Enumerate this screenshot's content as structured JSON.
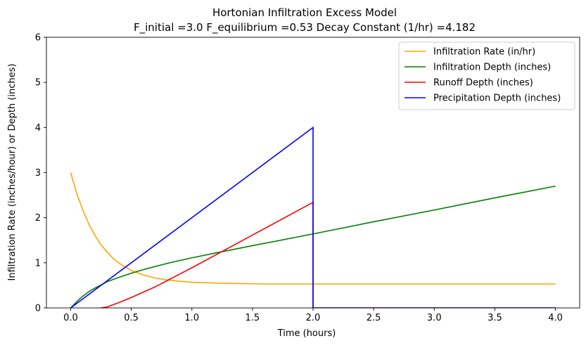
{
  "chart_data": {
    "type": "line",
    "title": "Hortonian Infiltration Excess Model",
    "subtitle": "F_initial =3.0 F_equilibrium =0.53 Decay Constant (1/hr) =4.182",
    "xlabel": "Time (hours)",
    "ylabel": "Infiltration Rate (inches/hour) or Depth (inches)",
    "xlim": [
      -0.2,
      4.2
    ],
    "ylim": [
      0,
      6
    ],
    "xticks": [
      0.0,
      0.5,
      1.0,
      1.5,
      2.0,
      2.5,
      3.0,
      3.5,
      4.0
    ],
    "xtick_labels": [
      "0.0",
      "0.5",
      "1.0",
      "1.5",
      "2.0",
      "2.5",
      "3.0",
      "3.5",
      "4.0"
    ],
    "yticks": [
      0,
      1,
      2,
      3,
      4,
      5,
      6
    ],
    "ytick_labels": [
      "0",
      "1",
      "2",
      "3",
      "4",
      "5",
      "6"
    ],
    "grid": false,
    "legend_position": "top-right",
    "series": [
      {
        "name": "Infiltration Rate (in/hr)",
        "color": "#ffa500",
        "x": [
          0.0,
          0.05,
          0.1,
          0.15,
          0.2,
          0.25,
          0.3,
          0.35,
          0.4,
          0.5,
          0.6,
          0.7,
          0.8,
          0.9,
          1.0,
          1.2,
          1.4,
          1.6,
          1.8,
          2.0,
          2.5,
          3.0,
          3.5,
          4.0
        ],
        "y": [
          3.0,
          2.54,
          2.17,
          1.86,
          1.61,
          1.4,
          1.24,
          1.1,
          0.99,
          0.83,
          0.73,
          0.66,
          0.62,
          0.59,
          0.57,
          0.55,
          0.54,
          0.53,
          0.53,
          0.53,
          0.53,
          0.53,
          0.53,
          0.53
        ]
      },
      {
        "name": "Infiltration Depth (inches)",
        "color": "#008000",
        "x": [
          0.0,
          0.05,
          0.1,
          0.15,
          0.2,
          0.3,
          0.4,
          0.5,
          0.6,
          0.8,
          1.0,
          1.2,
          1.5,
          2.0,
          2.5,
          3.0,
          3.5,
          4.0
        ],
        "y": [
          0.0,
          0.14,
          0.26,
          0.36,
          0.44,
          0.58,
          0.68,
          0.77,
          0.85,
          0.99,
          1.11,
          1.22,
          1.38,
          1.64,
          1.91,
          2.17,
          2.44,
          2.7
        ]
      },
      {
        "name": "Runoff Depth (inches)",
        "color": "#ff0000",
        "x": [
          0.25,
          0.3,
          0.4,
          0.5,
          0.6,
          0.7,
          0.8,
          1.0,
          1.2,
          1.4,
          1.6,
          1.8,
          2.0,
          2.0,
          2.5,
          3.0,
          3.5,
          4.0
        ],
        "y": [
          0.0,
          0.02,
          0.12,
          0.23,
          0.35,
          0.47,
          0.61,
          0.89,
          1.18,
          1.47,
          1.76,
          2.05,
          2.34,
          0.0,
          0.0,
          0.0,
          0.0,
          0.0
        ]
      },
      {
        "name": "Precipitation Depth (inches)",
        "color": "#0000ff",
        "x": [
          0.0,
          2.0,
          2.0,
          4.0
        ],
        "y": [
          0.0,
          4.0,
          0.0,
          0.0
        ]
      }
    ]
  }
}
